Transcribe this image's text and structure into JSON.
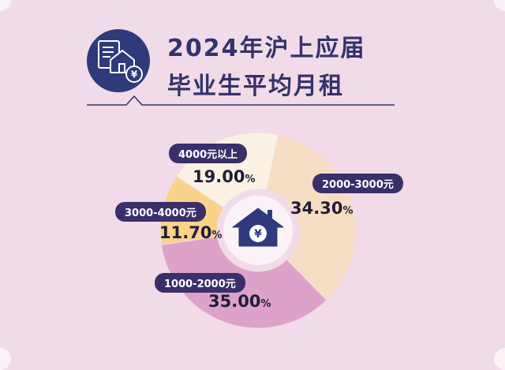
{
  "title": {
    "line1": "2024年沪上应届",
    "line2": "毕业生平均月租"
  },
  "chart_data": {
    "type": "pie",
    "slices": [
      {
        "label": "2000-3000元",
        "value": 34.3,
        "value_text": "34.30",
        "color": "#f5dec3"
      },
      {
        "label": "1000-2000元",
        "value": 35.0,
        "value_text": "35.00",
        "color": "#dea1c9"
      },
      {
        "label": "3000-4000元",
        "value": 11.7,
        "value_text": "11.70",
        "color": "#f9d389"
      },
      {
        "label": "4000元以上",
        "value": 19.0,
        "value_text": "19.00",
        "color": "#fbf2e3"
      }
    ],
    "unit": "%"
  },
  "colors": {
    "background": "#f2dbe8",
    "accent": "#33326b",
    "badge": "#3b2f6b"
  },
  "icons": {
    "header": "house-document-yen-icon",
    "center": "house-yen-icon"
  }
}
